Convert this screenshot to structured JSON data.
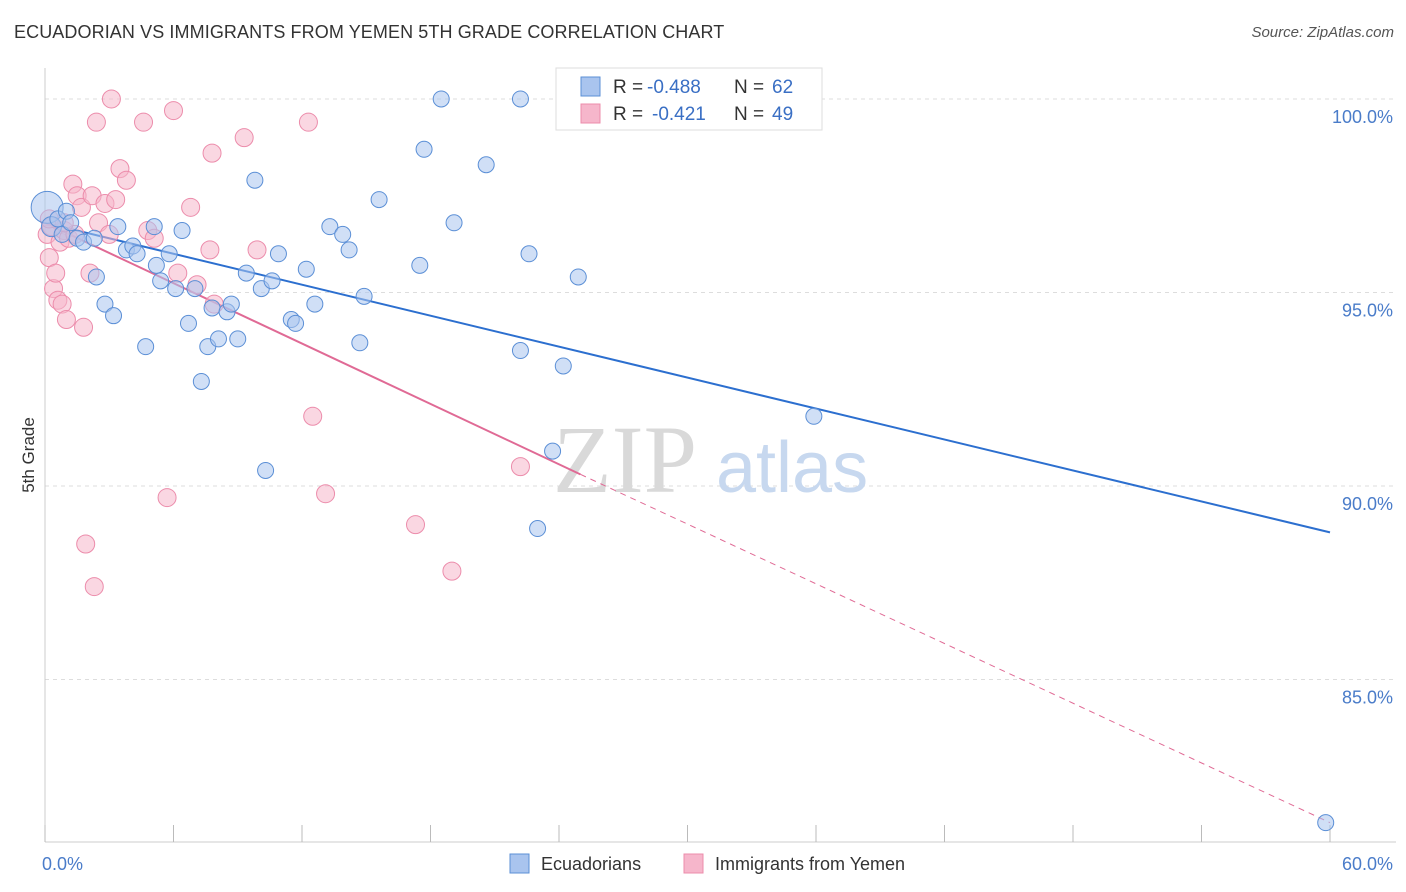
{
  "title": "ECUADORIAN VS IMMIGRANTS FROM YEMEN 5TH GRADE CORRELATION CHART",
  "source": "Source: ZipAtlas.com",
  "watermark": {
    "zip": "ZIP",
    "atlas": "atlas"
  },
  "colors": {
    "blue_fill": "#a9c4ee",
    "blue_stroke": "#5b8fd6",
    "blue_line": "#2c6fcf",
    "pink_fill": "#f6b6cb",
    "pink_stroke": "#ec8cab",
    "pink_line": "#e06a95",
    "grid": "#dddddd",
    "tick_label": "#4a7cc9"
  },
  "legend_top": {
    "rows": [
      {
        "series": "Ecuadorians",
        "r_label": "R =",
        "r_value": "-0.488",
        "n_label": "N =",
        "n_value": "62"
      },
      {
        "series": "Immigrants from Yemen",
        "r_label": "R =",
        "r_value": "-0.421",
        "n_label": "N =",
        "n_value": "49"
      }
    ]
  },
  "chart_data": {
    "type": "scatter",
    "title": "ECUADORIAN VS IMMIGRANTS FROM YEMEN 5TH GRADE CORRELATION CHART",
    "xlabel": "",
    "ylabel": "5th Grade",
    "xlim": [
      0,
      60
    ],
    "ylim": [
      80.8,
      100.8
    ],
    "x_tick_labels": [
      "0.0%",
      "60.0%"
    ],
    "y_ticks": [
      85,
      90,
      95,
      100
    ],
    "y_tick_labels": [
      "85.0%",
      "90.0%",
      "95.0%",
      "100.0%"
    ],
    "grid": true,
    "legend_position": "bottom",
    "series": [
      {
        "name": "Ecuadorians",
        "color": "#a9c4ee",
        "trend": {
          "x0": 0,
          "y0": 96.8,
          "x1": 60,
          "y1": 88.8
        },
        "points": [
          [
            0.1,
            97.2,
            16
          ],
          [
            0.3,
            96.7,
            10
          ],
          [
            0.6,
            96.9,
            8
          ],
          [
            0.8,
            96.5,
            8
          ],
          [
            1.0,
            97.1,
            8
          ],
          [
            1.2,
            96.8,
            8
          ],
          [
            1.5,
            96.4,
            8
          ],
          [
            1.8,
            96.3,
            8
          ],
          [
            2.3,
            96.4,
            8
          ],
          [
            2.4,
            95.4,
            8
          ],
          [
            2.8,
            94.7,
            8
          ],
          [
            3.2,
            94.4,
            8
          ],
          [
            3.4,
            96.7,
            8
          ],
          [
            3.8,
            96.1,
            8
          ],
          [
            4.1,
            96.2,
            8
          ],
          [
            4.3,
            96.0,
            8
          ],
          [
            4.7,
            93.6,
            8
          ],
          [
            5.1,
            96.7,
            8
          ],
          [
            5.2,
            95.7,
            8
          ],
          [
            5.4,
            95.3,
            8
          ],
          [
            5.8,
            96.0,
            8
          ],
          [
            6.1,
            95.1,
            8
          ],
          [
            6.4,
            96.6,
            8
          ],
          [
            6.7,
            94.2,
            8
          ],
          [
            7.0,
            95.1,
            8
          ],
          [
            7.3,
            92.7,
            8
          ],
          [
            7.6,
            93.6,
            8
          ],
          [
            7.8,
            94.6,
            8
          ],
          [
            8.1,
            93.8,
            8
          ],
          [
            8.5,
            94.5,
            8
          ],
          [
            8.7,
            94.7,
            8
          ],
          [
            9.0,
            93.8,
            8
          ],
          [
            9.4,
            95.5,
            8
          ],
          [
            9.8,
            97.9,
            8
          ],
          [
            10.1,
            95.1,
            8
          ],
          [
            10.3,
            90.4,
            8
          ],
          [
            10.6,
            95.3,
            8
          ],
          [
            10.9,
            96.0,
            8
          ],
          [
            11.5,
            94.3,
            8
          ],
          [
            11.7,
            94.2,
            8
          ],
          [
            12.2,
            95.6,
            8
          ],
          [
            12.6,
            94.7,
            8
          ],
          [
            13.3,
            96.7,
            8
          ],
          [
            13.9,
            96.5,
            8
          ],
          [
            14.2,
            96.1,
            8
          ],
          [
            14.7,
            93.7,
            8
          ],
          [
            14.9,
            94.9,
            8
          ],
          [
            15.6,
            97.4,
            8
          ],
          [
            17.5,
            95.7,
            8
          ],
          [
            17.7,
            98.7,
            8
          ],
          [
            18.5,
            100.0,
            8
          ],
          [
            19.1,
            96.8,
            8
          ],
          [
            20.6,
            98.3,
            8
          ],
          [
            22.2,
            100.0,
            8
          ],
          [
            22.2,
            93.5,
            8
          ],
          [
            22.6,
            96.0,
            8
          ],
          [
            23.0,
            88.9,
            8
          ],
          [
            23.7,
            90.9,
            8
          ],
          [
            24.2,
            93.1,
            8
          ],
          [
            24.9,
            95.4,
            8
          ],
          [
            35.9,
            91.8,
            8
          ],
          [
            59.8,
            81.3,
            8
          ]
        ]
      },
      {
        "name": "Immigrants from Yemen",
        "color": "#f6b6cb",
        "trend": {
          "x0": 0,
          "y0": 96.8,
          "x1": 25,
          "y1": 90.3
        },
        "trend_dashed": {
          "x0": 25,
          "y0": 90.3,
          "x1": 60,
          "y1": 81.3
        },
        "points": [
          [
            0.1,
            96.5,
            9
          ],
          [
            0.2,
            95.9,
            9
          ],
          [
            0.3,
            96.7,
            9
          ],
          [
            0.4,
            95.1,
            9
          ],
          [
            0.5,
            95.5,
            9
          ],
          [
            0.6,
            94.8,
            9
          ],
          [
            0.7,
            96.3,
            9
          ],
          [
            0.8,
            94.7,
            9
          ],
          [
            0.9,
            96.6,
            9
          ],
          [
            1.0,
            94.3,
            9
          ],
          [
            1.1,
            96.4,
            9
          ],
          [
            1.3,
            97.8,
            9
          ],
          [
            1.5,
            97.5,
            9
          ],
          [
            1.7,
            97.2,
            9
          ],
          [
            1.8,
            94.1,
            9
          ],
          [
            1.9,
            88.5,
            9
          ],
          [
            2.1,
            95.5,
            9
          ],
          [
            2.2,
            97.5,
            9
          ],
          [
            2.3,
            87.4,
            9
          ],
          [
            2.4,
            99.4,
            9
          ],
          [
            2.5,
            96.8,
            9
          ],
          [
            2.8,
            97.3,
            9
          ],
          [
            3.0,
            96.5,
            9
          ],
          [
            3.1,
            100.0,
            9
          ],
          [
            3.3,
            97.4,
            9
          ],
          [
            3.5,
            98.2,
            9
          ],
          [
            3.8,
            97.9,
            9
          ],
          [
            4.6,
            99.4,
            9
          ],
          [
            4.8,
            96.6,
            9
          ],
          [
            5.1,
            96.4,
            9
          ],
          [
            5.7,
            89.7,
            9
          ],
          [
            6.0,
            99.7,
            9
          ],
          [
            6.2,
            95.5,
            9
          ],
          [
            6.8,
            97.2,
            9
          ],
          [
            7.1,
            95.2,
            9
          ],
          [
            7.7,
            96.1,
            9
          ],
          [
            7.8,
            98.6,
            9
          ],
          [
            7.9,
            94.7,
            9
          ],
          [
            9.3,
            99.0,
            9
          ],
          [
            9.9,
            96.1,
            9
          ],
          [
            12.3,
            99.4,
            9
          ],
          [
            12.5,
            91.8,
            9
          ],
          [
            13.1,
            89.8,
            9
          ],
          [
            17.3,
            89.0,
            9
          ],
          [
            19.0,
            87.8,
            9
          ],
          [
            22.2,
            90.5,
            9
          ],
          [
            0.2,
            96.9,
            9
          ],
          [
            1.4,
            96.5,
            9
          ],
          [
            0.9,
            96.8,
            9
          ]
        ]
      }
    ]
  }
}
